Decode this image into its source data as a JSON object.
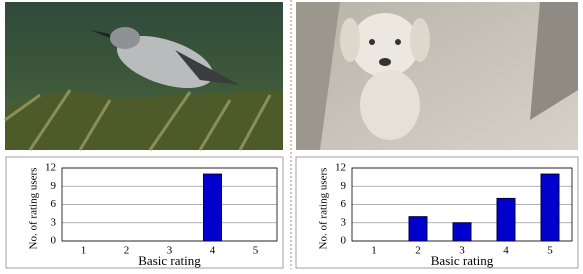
{
  "chart_data": [
    {
      "type": "bar",
      "categories": [
        "1",
        "2",
        "3",
        "4",
        "5"
      ],
      "values": [
        0,
        0,
        0,
        11,
        0
      ],
      "color": "#0000cc",
      "ylim": [
        0,
        12
      ],
      "yticks": [
        0,
        3,
        6,
        9,
        12
      ],
      "grid": true,
      "x_label": "Basic rating",
      "y_label": "No. of rating users"
    },
    {
      "type": "bar",
      "categories": [
        "1",
        "2",
        "3",
        "4",
        "5"
      ],
      "values": [
        0,
        4,
        3,
        7,
        11
      ],
      "color": "#0000cc",
      "ylim": [
        0,
        12
      ],
      "yticks": [
        0,
        3,
        6,
        9,
        12
      ],
      "grid": true,
      "x_label": "Basic rating",
      "y_label": "No. of rating users"
    }
  ]
}
